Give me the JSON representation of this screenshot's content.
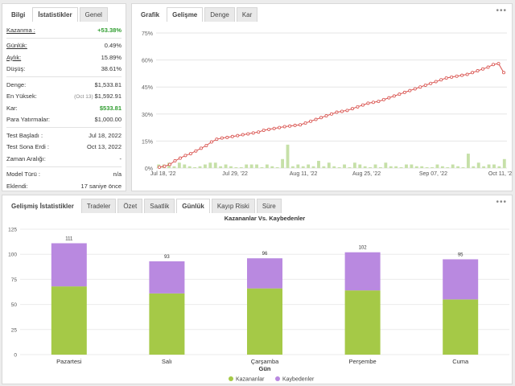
{
  "info_panel": {
    "tabs": [
      "Bilgi",
      "İstatistikler",
      "Genel"
    ],
    "rows1": [
      {
        "k": "Kazanma :",
        "v": "+53.38%",
        "green": true,
        "u": true
      }
    ],
    "rows2": [
      {
        "k": "Günlük:",
        "v": "0.49%",
        "u": true
      },
      {
        "k": "Aylık:",
        "v": "15.89%",
        "u": true
      },
      {
        "k": "Düşüş:",
        "v": "38.61%",
        "u": false
      }
    ],
    "rows3": [
      {
        "k": "Denge:",
        "v": "$1,533.81"
      },
      {
        "k": "En Yüksek:",
        "v": "$1,592.91",
        "note": "(Oct 13)"
      },
      {
        "k": "Kar:",
        "v": "$533.81",
        "green": true
      },
      {
        "k": "Para Yatırmalar:",
        "v": "$1,000.00"
      }
    ],
    "rows4": [
      {
        "k": "Test Başladı :",
        "v": "Jul 18, 2022"
      },
      {
        "k": "Test Sona Erdi :",
        "v": "Oct 13, 2022"
      },
      {
        "k": "Zaman Aralığı:",
        "v": "-"
      }
    ],
    "rows5": [
      {
        "k": "Model Türü :",
        "v": "n/a"
      },
      {
        "k": "Eklendi:",
        "v": "17 saniye önce"
      }
    ]
  },
  "growth_panel": {
    "tabs": [
      "Grafik",
      "Gelişme",
      "Denge",
      "Kar"
    ],
    "more": "•••"
  },
  "adv_panel": {
    "tabs": [
      "Gelişmiş İstatistikler",
      "Tradeler",
      "Özet",
      "Saatlik",
      "Günlük",
      "Kayıp Riski",
      "Süre"
    ],
    "more": "•••"
  },
  "chart_data": [
    {
      "type": "line",
      "title": "",
      "x_ticks": [
        "Jul 18, '22",
        "Jul 29, '22",
        "Aug 11, '22",
        "Aug 25, '22",
        "Sep 07, '22",
        "Oct 11, '22"
      ],
      "y_ticks": [
        "0%",
        "15%",
        "30%",
        "45%",
        "60%",
        "75%"
      ],
      "ylim": [
        0,
        75
      ],
      "series": [
        {
          "values": [
            0.5,
            1,
            2,
            4,
            5.5,
            7,
            8,
            9.5,
            11,
            12.5,
            14.5,
            16,
            16.7,
            17,
            17.5,
            18,
            18.5,
            19,
            19.5,
            20,
            21,
            21.5,
            22,
            22.5,
            23,
            23.3,
            23.7,
            24,
            25,
            26,
            27,
            28,
            29,
            30,
            31,
            31.5,
            32,
            33,
            34,
            35,
            36,
            36.5,
            37,
            38,
            39,
            40,
            41,
            42,
            43,
            44,
            45,
            46,
            47,
            48,
            49,
            50,
            50.5,
            51,
            51.5,
            52,
            53,
            54,
            55,
            56,
            57.5,
            58,
            53
          ]
        }
      ],
      "bars": [
        2,
        2,
        3,
        1,
        3,
        2,
        1,
        0.5,
        1,
        2,
        3,
        3,
        1,
        2,
        1,
        0.5,
        0.5,
        2,
        2,
        2,
        0.5,
        2,
        1,
        0.5,
        5,
        13,
        1,
        2,
        1,
        2,
        1,
        4,
        1,
        3,
        1,
        0.5,
        2,
        0.5,
        3,
        2,
        1,
        0.5,
        2,
        0.5,
        3,
        1,
        1,
        0.5,
        2,
        2,
        1,
        1,
        0.5,
        0.5,
        2,
        1,
        0.5,
        2,
        1,
        0.5,
        8,
        1,
        3,
        1,
        2,
        2,
        1,
        5
      ]
    },
    {
      "type": "bar",
      "title": "Kazananlar Vs. Kaybedenler",
      "xlabel": "Gün",
      "categories": [
        "Pazartesi",
        "Salı",
        "Çarşamba",
        "Perşembe",
        "Cuma"
      ],
      "totals": [
        111,
        93,
        96,
        102,
        95
      ],
      "series": [
        {
          "name": "Kazananlar",
          "values": [
            68,
            61,
            66,
            64,
            55
          ],
          "color": "#a5c947"
        },
        {
          "name": "Kaybedenler",
          "values": [
            43,
            32,
            30,
            38,
            40
          ],
          "color": "#b989e0"
        }
      ],
      "y_ticks": [
        "0",
        "25",
        "50",
        "75",
        "100",
        "125"
      ],
      "ylim": [
        0,
        125
      ]
    }
  ]
}
